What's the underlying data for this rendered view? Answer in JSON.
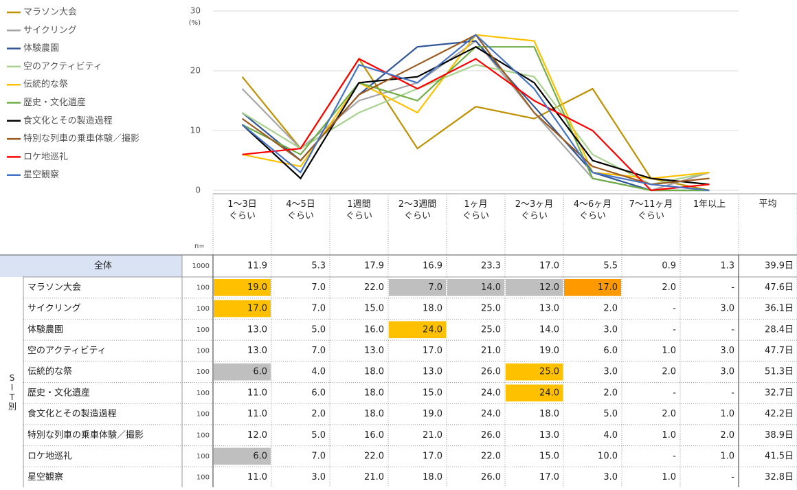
{
  "chart_data": {
    "type": "line",
    "y_unit": "(%)",
    "ylim": [
      0,
      30
    ],
    "yticks": [
      0,
      10,
      20,
      30
    ],
    "grid": true,
    "legend": "top-left",
    "categories": [
      "1～3日\nぐらい",
      "4～5日\nぐらい",
      "1週間\nぐらい",
      "2～3週間\nぐらい",
      "1ヶ月\nぐらい",
      "2～3ヶ月\nぐらい",
      "4～6ヶ月\nぐらい",
      "7～11ヶ月\nぐらい",
      "1年以上"
    ],
    "series": [
      {
        "name": "マラソン大会",
        "color": "#bf9000",
        "values": [
          19,
          7,
          22,
          7,
          14,
          12,
          17,
          2,
          0
        ],
        "value_labels": [
          "19.0",
          "7.0",
          "22.0",
          "7.0",
          "14.0",
          "12.0",
          "17.0",
          "2.0",
          "-"
        ],
        "n": "100",
        "average": "47.6日",
        "cell_colors": [
          "#ffc000",
          null,
          null,
          "#bfbfbf",
          "#bfbfbf",
          "#bfbfbf",
          "#ff9900",
          null,
          null
        ]
      },
      {
        "name": "サイクリング",
        "color": "#a5a5a5",
        "values": [
          17,
          7,
          15,
          18,
          25,
          13,
          2,
          0,
          3
        ],
        "value_labels": [
          "17.0",
          "7.0",
          "15.0",
          "18.0",
          "25.0",
          "13.0",
          "2.0",
          "-",
          "3.0"
        ],
        "n": "100",
        "average": "36.1日",
        "cell_colors": [
          "#ffc000",
          null,
          null,
          null,
          null,
          null,
          null,
          null,
          null
        ]
      },
      {
        "name": "体験農園",
        "color": "#2f5597",
        "values": [
          13,
          5,
          16,
          24,
          25,
          14,
          3,
          0,
          0
        ],
        "value_labels": [
          "13.0",
          "5.0",
          "16.0",
          "24.0",
          "25.0",
          "14.0",
          "3.0",
          "-",
          "-"
        ],
        "n": "100",
        "average": "28.4日",
        "cell_colors": [
          null,
          null,
          null,
          "#ffc000",
          null,
          null,
          null,
          null,
          null
        ]
      },
      {
        "name": "空のアクティビティ",
        "color": "#a9d18e",
        "values": [
          13,
          7,
          13,
          17,
          21,
          19,
          6,
          1,
          3
        ],
        "value_labels": [
          "13.0",
          "7.0",
          "13.0",
          "17.0",
          "21.0",
          "19.0",
          "6.0",
          "1.0",
          "3.0"
        ],
        "n": "100",
        "average": "47.7日",
        "cell_colors": [
          null,
          null,
          null,
          null,
          null,
          null,
          null,
          null,
          null
        ]
      },
      {
        "name": "伝統的な祭",
        "color": "#ffc000",
        "values": [
          6,
          4,
          18,
          13,
          26,
          25,
          3,
          2,
          3
        ],
        "value_labels": [
          "6.0",
          "4.0",
          "18.0",
          "13.0",
          "26.0",
          "25.0",
          "3.0",
          "2.0",
          "3.0"
        ],
        "n": "100",
        "average": "51.3日",
        "cell_colors": [
          "#bfbfbf",
          null,
          null,
          null,
          null,
          "#ffc000",
          null,
          null,
          null
        ]
      },
      {
        "name": "歴史・文化遺産",
        "color": "#70ad47",
        "values": [
          11,
          6,
          18,
          15,
          24,
          24,
          2,
          0,
          0
        ],
        "value_labels": [
          "11.0",
          "6.0",
          "18.0",
          "15.0",
          "24.0",
          "24.0",
          "2.0",
          "-",
          "-"
        ],
        "n": "100",
        "average": "32.7日",
        "cell_colors": [
          null,
          null,
          null,
          null,
          null,
          "#ffc000",
          null,
          null,
          null
        ]
      },
      {
        "name": "食文化とその製造過程",
        "color": "#000000",
        "values": [
          11,
          2,
          18,
          19,
          24,
          18,
          5,
          2,
          1
        ],
        "value_labels": [
          "11.0",
          "2.0",
          "18.0",
          "19.0",
          "24.0",
          "18.0",
          "5.0",
          "2.0",
          "1.0"
        ],
        "n": "100",
        "average": "42.2日",
        "cell_colors": [
          null,
          null,
          null,
          null,
          null,
          null,
          null,
          null,
          null
        ]
      },
      {
        "name": "特別な列車の乗車体験／撮影",
        "color": "#9c5a1e",
        "values": [
          12,
          5,
          16,
          21,
          26,
          13,
          4,
          1,
          2
        ],
        "value_labels": [
          "12.0",
          "5.0",
          "16.0",
          "21.0",
          "26.0",
          "13.0",
          "4.0",
          "1.0",
          "2.0"
        ],
        "n": "100",
        "average": "38.9日",
        "cell_colors": [
          null,
          null,
          null,
          null,
          null,
          null,
          null,
          null,
          null
        ]
      },
      {
        "name": "ロケ地巡礼",
        "color": "#ff0000",
        "values": [
          6,
          7,
          22,
          17,
          22,
          15,
          10,
          0,
          1
        ],
        "value_labels": [
          "6.0",
          "7.0",
          "22.0",
          "17.0",
          "22.0",
          "15.0",
          "10.0",
          "-",
          "1.0"
        ],
        "n": "100",
        "average": "41.5日",
        "cell_colors": [
          "#bfbfbf",
          null,
          null,
          null,
          null,
          null,
          null,
          null,
          null
        ]
      },
      {
        "name": "星空観察",
        "color": "#4472c4",
        "values": [
          11,
          3,
          21,
          18,
          26,
          17,
          3,
          1,
          0
        ],
        "value_labels": [
          "11.0",
          "3.0",
          "21.0",
          "18.0",
          "26.0",
          "17.0",
          "3.0",
          "1.0",
          "-"
        ],
        "n": "100",
        "average": "32.8日",
        "cell_colors": [
          null,
          null,
          null,
          null,
          null,
          null,
          null,
          null,
          null
        ]
      }
    ]
  },
  "table": {
    "n_header": "n=",
    "average_header": "平均",
    "side_label": "SIT別",
    "total": {
      "label": "全体",
      "n": "1000",
      "value_labels": [
        "11.9",
        "5.3",
        "17.9",
        "16.9",
        "23.3",
        "17.0",
        "5.5",
        "0.9",
        "1.3"
      ],
      "average": "39.9日"
    }
  }
}
